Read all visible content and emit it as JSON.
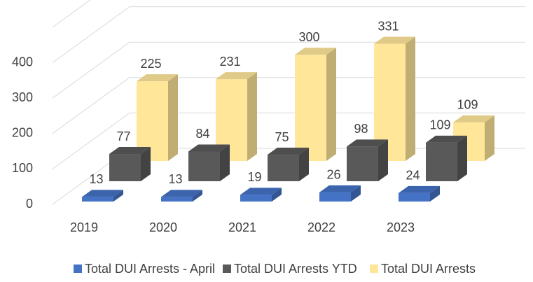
{
  "chart_data": {
    "type": "bar3d",
    "categories": [
      "2019",
      "2020",
      "2021",
      "2022",
      "2023"
    ],
    "series": [
      {
        "name": "Total DUI Arrests - April",
        "color": "#4472c4",
        "values": [
          13,
          13,
          19,
          26,
          24
        ]
      },
      {
        "name": "Total DUI Arrests YTD",
        "color": "#595959",
        "values": [
          77,
          84,
          75,
          98,
          109
        ]
      },
      {
        "name": "Total DUI Arrests",
        "color": "#ffe699",
        "values": [
          225,
          231,
          300,
          331,
          109
        ]
      }
    ],
    "ylim": [
      0,
      500
    ],
    "yticks": [
      0,
      100,
      200,
      300,
      400
    ],
    "grid": true,
    "legend": "bottom"
  }
}
